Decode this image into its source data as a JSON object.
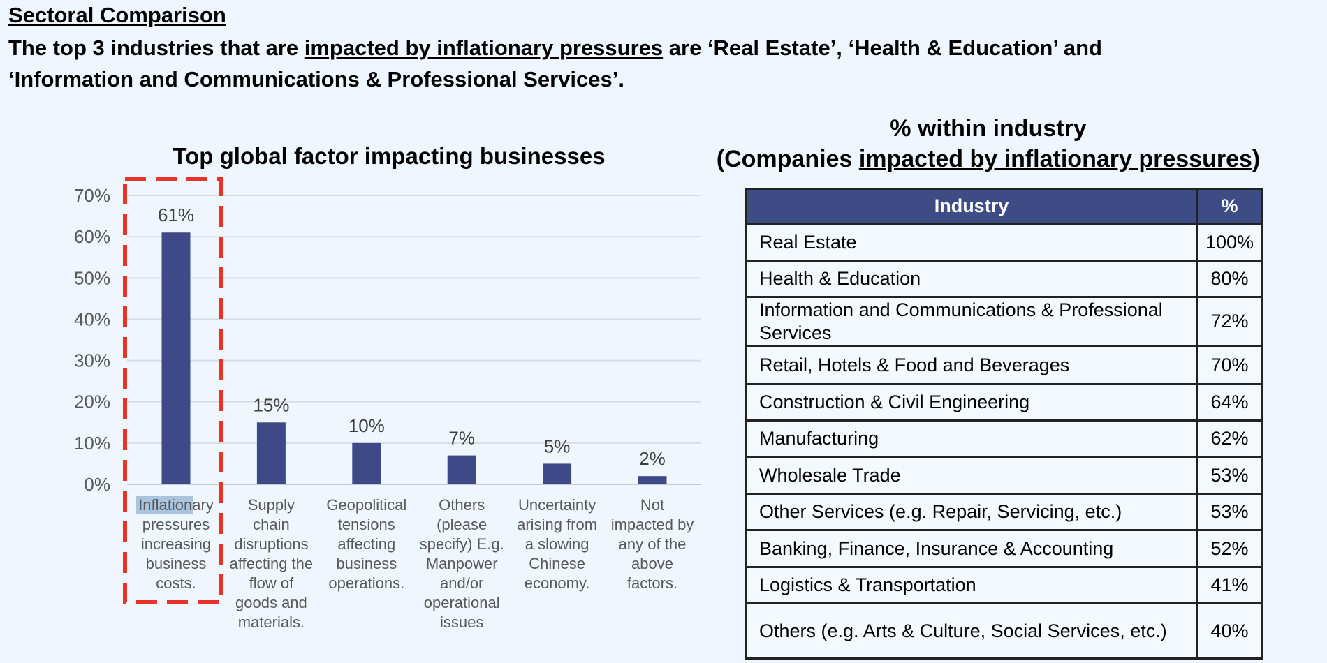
{
  "heading": "Sectoral Comparison",
  "subtitle": {
    "part1": "The top 3 industries that are ",
    "underlined": "impacted by inflationary pressures",
    "part2": " are ‘Real Estate’, ‘Health & Education’ and",
    "line2": "‘Information and Communications & Professional Services’."
  },
  "colors": {
    "bar": "#3e4a87",
    "highlight_box": "#e8332a",
    "table_header": "#3e4c86",
    "background": "#eff6fd"
  },
  "chart_data": {
    "type": "bar",
    "title": "Top global factor impacting businesses",
    "categories": [
      "Inflationary\npressures\nincreasing\nbusiness\ncosts.",
      "Supply\nchain\ndisruptions\naffecting the\nflow of\ngoods and\nmaterials.",
      "Geopolitical\ntensions\naffecting\nbusiness\noperations.",
      "Others\n(please\nspecify) E.g.\nManpower\nand/or\noperational\nissues",
      "Uncertainty\narising from\na slowing\nChinese\neconomy.",
      "Not\nimpacted by\nany of the\nabove\nfactors."
    ],
    "values": [
      61,
      15,
      10,
      7,
      5,
      2
    ],
    "data_labels": [
      "61%",
      "15%",
      "10%",
      "7%",
      "5%",
      "2%"
    ],
    "yticks": [
      "0%",
      "10%",
      "20%",
      "30%",
      "40%",
      "50%",
      "60%",
      "70%"
    ],
    "ylim": [
      0,
      70
    ],
    "grid": true,
    "highlighted_category": 0
  },
  "table": {
    "title_line1": "% within industry",
    "title_line2_part1": "(Companies ",
    "title_line2_underlined": "impacted by inflationary pressures",
    "title_line2_part2": ")",
    "headers": [
      "Industry",
      "%"
    ],
    "rows": [
      [
        "Real Estate",
        "100%"
      ],
      [
        "Health & Education",
        "80%"
      ],
      [
        "Information and Communications & Professional Services",
        "72%"
      ],
      [
        "Retail, Hotels & Food and Beverages",
        "70%"
      ],
      [
        "Construction & Civil Engineering",
        "64%"
      ],
      [
        "Manufacturing",
        "62%"
      ],
      [
        "Wholesale Trade",
        "53%"
      ],
      [
        "Other Services (e.g. Repair, Servicing, etc.)",
        "53%"
      ],
      [
        "Banking, Finance, Insurance & Accounting",
        "52%"
      ],
      [
        "Logistics & Transportation",
        "41%"
      ],
      [
        "Others (e.g. Arts & Culture, Social Services, etc.)",
        "40%"
      ]
    ]
  }
}
